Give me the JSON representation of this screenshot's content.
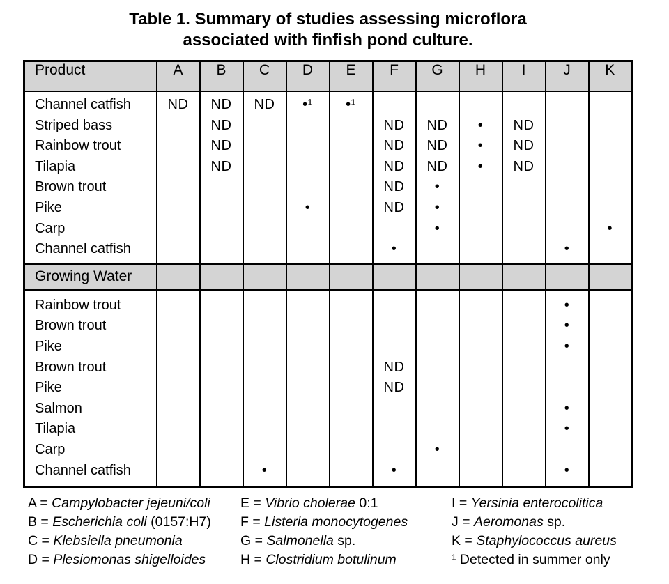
{
  "page": {
    "title_line1": "Table 1. Summary of studies assessing microflora",
    "title_line2": "associated with finfish pond culture."
  },
  "colors": {
    "header_fill": "#d4d4d4",
    "border": "#000000",
    "text": "#000000",
    "background": "#ffffff"
  },
  "table": {
    "header": [
      "Product",
      "A",
      "B",
      "C",
      "D",
      "E",
      "F",
      "G",
      "H",
      "I",
      "J",
      "K"
    ],
    "sections": [
      {
        "band": null,
        "rows": [
          {
            "name": "Channel catfish",
            "cells": [
              "ND",
              "ND",
              "ND",
              "•¹",
              "•¹",
              "",
              "",
              "",
              "",
              "",
              ""
            ]
          },
          {
            "name": "Striped bass",
            "cells": [
              "",
              "ND",
              "",
              "",
              "",
              "ND",
              "ND",
              "•",
              "ND",
              "",
              ""
            ]
          },
          {
            "name": "Rainbow trout",
            "cells": [
              "",
              "ND",
              "",
              "",
              "",
              "ND",
              "ND",
              "•",
              "ND",
              "",
              ""
            ]
          },
          {
            "name": "Tilapia",
            "cells": [
              "",
              "ND",
              "",
              "",
              "",
              "ND",
              "ND",
              "•",
              "ND",
              "",
              ""
            ]
          },
          {
            "name": "Brown trout",
            "cells": [
              "",
              "",
              "",
              "",
              "",
              "ND",
              "•",
              "",
              "",
              "",
              ""
            ]
          },
          {
            "name": "Pike",
            "cells": [
              "",
              "",
              "",
              "•",
              "",
              "ND",
              "•",
              "",
              "",
              "",
              ""
            ]
          },
          {
            "name": "Carp",
            "cells": [
              "",
              "",
              "",
              "",
              "",
              "",
              "•",
              "",
              "",
              "",
              "•"
            ]
          },
          {
            "name": "Channel catfish",
            "cells": [
              "",
              "",
              "",
              "",
              "",
              "•",
              "",
              "",
              "",
              "•",
              ""
            ]
          }
        ]
      },
      {
        "band": "Growing Water",
        "rows": [
          {
            "name": "Rainbow trout",
            "cells": [
              "",
              "",
              "",
              "",
              "",
              "",
              "",
              "",
              "",
              "•",
              ""
            ]
          },
          {
            "name": "Brown trout",
            "cells": [
              "",
              "",
              "",
              "",
              "",
              "",
              "",
              "",
              "",
              "•",
              ""
            ]
          },
          {
            "name": "Pike",
            "cells": [
              "",
              "",
              "",
              "",
              "",
              "",
              "",
              "",
              "",
              "•",
              ""
            ]
          },
          {
            "name": "Brown trout",
            "cells": [
              "",
              "",
              "",
              "",
              "",
              "ND",
              "",
              "",
              "",
              "",
              ""
            ]
          },
          {
            "name": "Pike",
            "cells": [
              "",
              "",
              "",
              "",
              "",
              "ND",
              "",
              "",
              "",
              "",
              ""
            ]
          },
          {
            "name": "Salmon",
            "cells": [
              "",
              "",
              "",
              "",
              "",
              "",
              "",
              "",
              "",
              "•",
              ""
            ]
          },
          {
            "name": "Tilapia",
            "cells": [
              "",
              "",
              "",
              "",
              "",
              "",
              "",
              "",
              "",
              "•",
              ""
            ]
          },
          {
            "name": "Carp",
            "cells": [
              "",
              "",
              "",
              "",
              "",
              "",
              "•",
              "",
              "",
              "",
              ""
            ]
          },
          {
            "name": "Channel catfish",
            "cells": [
              "",
              "",
              "•",
              "",
              "",
              "•",
              "",
              "",
              "",
              "•",
              ""
            ]
          }
        ]
      }
    ]
  },
  "legend": {
    "columns": [
      [
        {
          "pre": "A = ",
          "italic": "Campylobacter jejeuni/coli",
          "post": ""
        },
        {
          "pre": "B = ",
          "italic": "Escherichia coli",
          "post": " (0157:H7)"
        },
        {
          "pre": "C = ",
          "italic": "Klebsiella pneumonia",
          "post": ""
        },
        {
          "pre": "D = ",
          "italic": "Plesiomonas shigelloides",
          "post": ""
        }
      ],
      [
        {
          "pre": "E = ",
          "italic": "Vibrio cholerae",
          "post": " 0:1"
        },
        {
          "pre": "F = ",
          "italic": "Listeria monocytogenes",
          "post": ""
        },
        {
          "pre": "G = ",
          "italic": "Salmonella",
          "post": " sp."
        },
        {
          "pre": "H = ",
          "italic": "Clostridium botulinum",
          "post": ""
        }
      ],
      [
        {
          "pre": "I = ",
          "italic": "Yersinia enterocolitica",
          "post": ""
        },
        {
          "pre": "J = ",
          "italic": "Aeromonas",
          "post": " sp."
        },
        {
          "pre": "K = ",
          "italic": "Staphylococcus aureus",
          "post": ""
        },
        {
          "pre": "¹ ",
          "italic": "",
          "post": "Detected in summer only"
        }
      ]
    ]
  }
}
